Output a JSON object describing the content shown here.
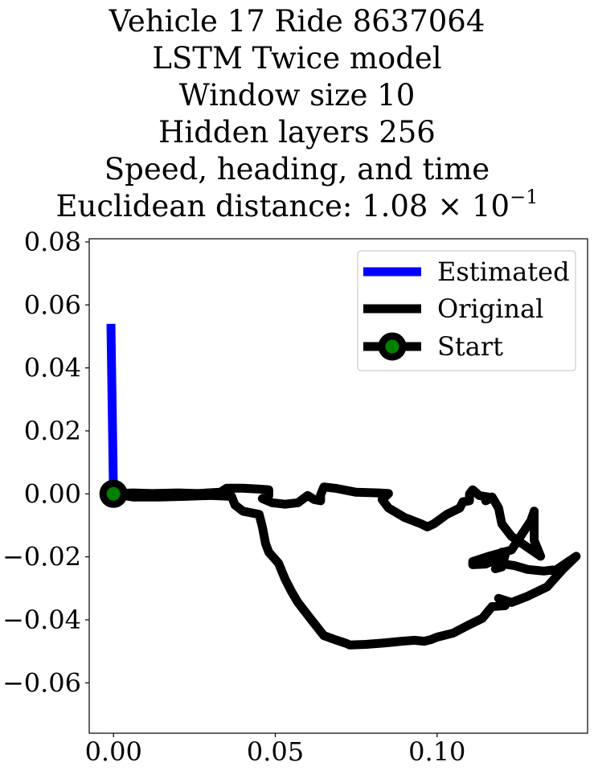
{
  "chart_data": {
    "type": "line",
    "title_lines": [
      "Vehicle 17 Ride 8637064",
      "LSTM Twice model",
      "Window size 10",
      "Hidden layers 256",
      "Speed, heading, and time"
    ],
    "distance_label": "Euclidean distance: 1.08",
    "distance_times": "×",
    "distance_base": "10",
    "distance_exponent": "−1",
    "xlim": [
      -0.0075,
      0.1465
    ],
    "ylim": [
      -0.076,
      0.081
    ],
    "xticks": [
      0.0,
      0.05,
      0.1
    ],
    "xtick_labels": [
      "0.00",
      "0.05",
      "0.10"
    ],
    "yticks": [
      0.08,
      0.06,
      0.04,
      0.02,
      0.0,
      -0.02,
      -0.04,
      -0.06
    ],
    "ytick_labels": [
      "0.08",
      "0.06",
      "0.04",
      "0.02",
      "0.00",
      "−0.02",
      "−0.04",
      "−0.06"
    ],
    "grid": false,
    "legend_position": "top-right",
    "series": [
      {
        "name": "Estimated",
        "color": "#0000ff",
        "points": [
          [
            -0.0008,
            0.054
          ],
          [
            0.0,
            0.0
          ]
        ]
      },
      {
        "name": "Original",
        "color": "#000000",
        "points": [
          [
            0.0,
            0.0
          ],
          [
            0.006,
            0.0003
          ],
          [
            0.012,
            0.0001
          ],
          [
            0.02,
            0.0003
          ],
          [
            0.026,
            0.0001
          ],
          [
            0.033,
            0.0005
          ],
          [
            0.035,
            0.0018
          ],
          [
            0.04,
            0.0018
          ],
          [
            0.045,
            0.0015
          ],
          [
            0.048,
            0.0013
          ],
          [
            0.048,
            -0.0005
          ],
          [
            0.046,
            -0.0015
          ],
          [
            0.049,
            -0.0028
          ],
          [
            0.053,
            -0.0033
          ],
          [
            0.057,
            -0.0028
          ],
          [
            0.06,
            -0.0005
          ],
          [
            0.062,
            -0.0018
          ],
          [
            0.064,
            -0.0022
          ],
          [
            0.064,
            -0.0003
          ],
          [
            0.065,
            0.0022
          ],
          [
            0.069,
            0.0017
          ],
          [
            0.075,
            0.0005
          ],
          [
            0.082,
            0.0003
          ],
          [
            0.085,
            0.0001
          ],
          [
            0.083,
            -0.0018
          ],
          [
            0.085,
            -0.0045
          ],
          [
            0.09,
            -0.0075
          ],
          [
            0.095,
            -0.0095
          ],
          [
            0.097,
            -0.0105
          ],
          [
            0.099,
            -0.0095
          ],
          [
            0.103,
            -0.0065
          ],
          [
            0.107,
            -0.0045
          ],
          [
            0.108,
            -0.0025
          ],
          [
            0.11,
            -0.0022
          ],
          [
            0.11,
            0.0
          ],
          [
            0.111,
            0.0013
          ],
          [
            0.113,
            -0.0005
          ],
          [
            0.117,
            -0.0012
          ],
          [
            0.115,
            -0.0022
          ],
          [
            0.117,
            -0.001
          ],
          [
            0.119,
            -0.0045
          ],
          [
            0.12,
            -0.0095
          ],
          [
            0.123,
            -0.0135
          ],
          [
            0.128,
            -0.017
          ],
          [
            0.132,
            -0.0198
          ],
          [
            0.13,
            -0.0148
          ],
          [
            0.13,
            -0.0055
          ],
          [
            0.129,
            -0.0085
          ],
          [
            0.123,
            -0.0178
          ],
          [
            0.116,
            -0.0198
          ],
          [
            0.111,
            -0.0215
          ],
          [
            0.111,
            -0.0225
          ],
          [
            0.115,
            -0.0223
          ],
          [
            0.119,
            -0.0205
          ],
          [
            0.12,
            -0.0185
          ],
          [
            0.121,
            -0.0195
          ],
          [
            0.12,
            -0.0232
          ],
          [
            0.118,
            -0.0238
          ],
          [
            0.119,
            -0.022
          ],
          [
            0.124,
            -0.0228
          ],
          [
            0.128,
            -0.024
          ],
          [
            0.133,
            -0.0245
          ],
          [
            0.137,
            -0.024
          ],
          [
            0.143,
            -0.0198
          ],
          [
            0.139,
            -0.0238
          ],
          [
            0.134,
            -0.0295
          ],
          [
            0.128,
            -0.0325
          ],
          [
            0.123,
            -0.0345
          ],
          [
            0.119,
            -0.0332
          ],
          [
            0.121,
            -0.0355
          ],
          [
            0.117,
            -0.0358
          ],
          [
            0.116,
            -0.037
          ],
          [
            0.114,
            -0.0395
          ],
          [
            0.11,
            -0.0415
          ],
          [
            0.105,
            -0.0442
          ],
          [
            0.1,
            -0.0455
          ],
          [
            0.098,
            -0.0463
          ],
          [
            0.096,
            -0.0468
          ],
          [
            0.093,
            -0.0465
          ],
          [
            0.089,
            -0.0468
          ],
          [
            0.084,
            -0.0473
          ],
          [
            0.078,
            -0.0478
          ],
          [
            0.073,
            -0.048
          ],
          [
            0.072,
            -0.0475
          ],
          [
            0.069,
            -0.0465
          ],
          [
            0.065,
            -0.045
          ],
          [
            0.061,
            -0.0398
          ],
          [
            0.057,
            -0.0345
          ],
          [
            0.055,
            -0.031
          ],
          [
            0.053,
            -0.027
          ],
          [
            0.051,
            -0.022
          ],
          [
            0.048,
            -0.0185
          ],
          [
            0.047,
            -0.0158
          ],
          [
            0.046,
            -0.0105
          ],
          [
            0.045,
            -0.0065
          ],
          [
            0.04,
            -0.0055
          ],
          [
            0.0375,
            -0.0035
          ],
          [
            0.0365,
            -0.0008
          ],
          [
            0.03,
            -0.0005
          ],
          [
            0.022,
            -0.0008
          ],
          [
            0.014,
            -0.001
          ],
          [
            0.006,
            -0.001
          ],
          [
            0.0,
            0.0
          ]
        ]
      }
    ],
    "start_point": {
      "name": "Start",
      "x": 0.0,
      "y": 0.0,
      "marker_face": "#008000",
      "marker_edge": "#000000"
    }
  }
}
